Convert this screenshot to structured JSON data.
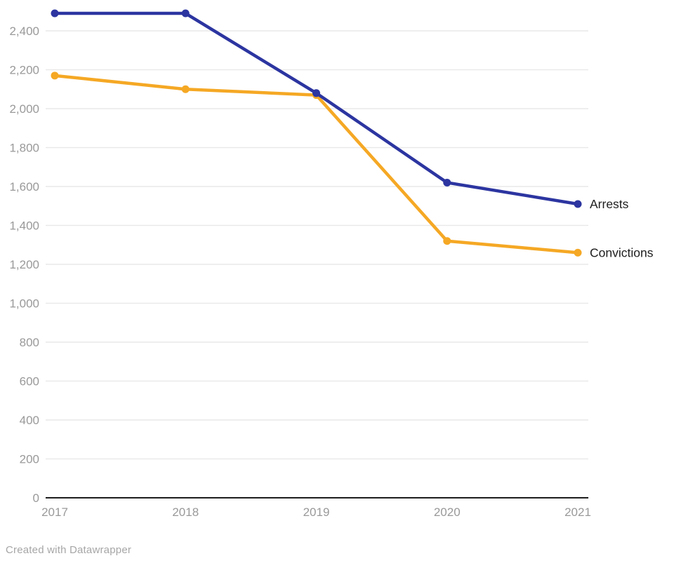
{
  "footer": {
    "credit": "Created with Datawrapper"
  },
  "chart_data": {
    "type": "line",
    "title": "",
    "xlabel": "",
    "ylabel": "",
    "x": [
      "2017",
      "2018",
      "2019",
      "2020",
      "2021"
    ],
    "series": [
      {
        "name": "Arrests",
        "color": "#2c35a0",
        "values": [
          2490,
          2490,
          2080,
          1620,
          1510
        ]
      },
      {
        "name": "Convictions",
        "color": "#f5a824",
        "values": [
          2170,
          2100,
          2070,
          1320,
          1260
        ]
      }
    ],
    "ylim": [
      0,
      2400
    ],
    "ytick_step": 200,
    "ytick_labels": [
      "0",
      "200",
      "400",
      "600",
      "800",
      "1,000",
      "1,200",
      "1,400",
      "1,600",
      "1,800",
      "2,000",
      "2,200",
      "2,400"
    ],
    "grid": "horizontal",
    "legend_position": "end-of-line",
    "colors": {
      "grid": "#e9e9e9",
      "axis": "#1d1d1d",
      "tick_text": "#999999",
      "series_label_text": "#1d1d1d"
    }
  }
}
